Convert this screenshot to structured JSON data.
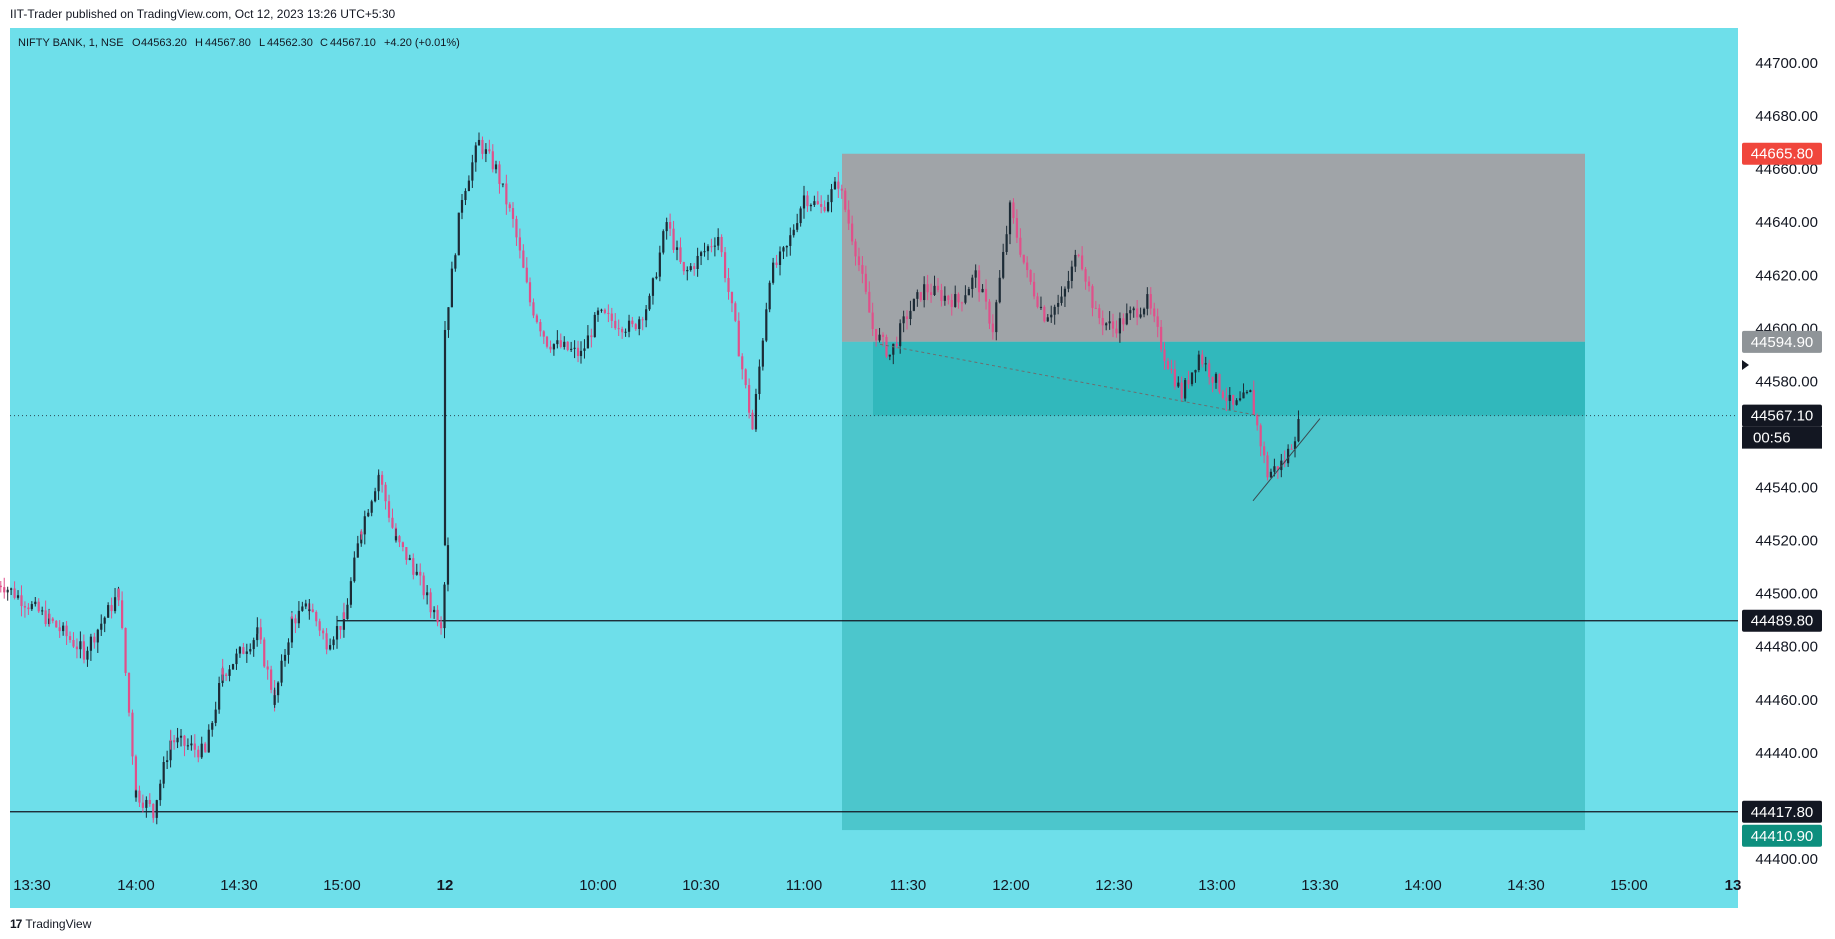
{
  "header": {
    "published": "IIT-Trader published on TradingView.com, Oct 12, 2023 13:26 UTC+5:30"
  },
  "footer": {
    "brand_mark": "17",
    "brand": "TradingView"
  },
  "colors": {
    "background": "#6edfea",
    "profit_zone": "#4cc6cc",
    "stop_zone": "#a0a4a8",
    "up_candle": "#1c2b36",
    "down_candle": "#e0508a",
    "level_line": "#131722",
    "badge_red": "#f0463c",
    "badge_gray": "#8f9498",
    "badge_dark": "#131722",
    "badge_green": "#0d8f7e"
  },
  "chart_data": {
    "type": "candlestick",
    "legend": {
      "symbol": "NIFTY BANK, 1, NSE",
      "open_label": "O",
      "open": "44563.20",
      "high_label": "H",
      "high": "44567.80",
      "low_label": "L",
      "low": "44562.30",
      "close_label": "C",
      "close": "44567.10",
      "change": "+4.20 (+0.01%)"
    },
    "y_axis": {
      "ticks": [
        "44700.00",
        "44680.00",
        "44660.00",
        "44640.00",
        "44620.00",
        "44600.00",
        "44580.00",
        "44560.00",
        "44540.00",
        "44520.00",
        "44500.00",
        "44480.00",
        "44460.00",
        "44440.00",
        "44400.00"
      ],
      "ylim": [
        44400,
        44710
      ]
    },
    "x_axis": {
      "ticks": [
        {
          "label": "13:30",
          "bold": false
        },
        {
          "label": "14:00",
          "bold": false
        },
        {
          "label": "14:30",
          "bold": false
        },
        {
          "label": "15:00",
          "bold": false
        },
        {
          "label": "12",
          "bold": true
        },
        {
          "label": "10:00",
          "bold": false
        },
        {
          "label": "10:30",
          "bold": false
        },
        {
          "label": "11:00",
          "bold": false
        },
        {
          "label": "11:30",
          "bold": false
        },
        {
          "label": "12:00",
          "bold": false
        },
        {
          "label": "12:30",
          "bold": false
        },
        {
          "label": "13:00",
          "bold": false
        },
        {
          "label": "13:30",
          "bold": false
        },
        {
          "label": "14:00",
          "bold": false
        },
        {
          "label": "14:30",
          "bold": false
        },
        {
          "label": "15:00",
          "bold": false
        },
        {
          "label": "13",
          "bold": true
        }
      ]
    },
    "price_badges": [
      {
        "value": "44665.80",
        "color": "badge_red"
      },
      {
        "value": "44594.90",
        "color": "badge_gray"
      },
      {
        "value": "44567.10",
        "color": "badge_dark",
        "countdown": "00:56"
      },
      {
        "value": "44489.80",
        "color": "badge_dark"
      },
      {
        "value": "44417.80",
        "color": "badge_dark"
      },
      {
        "value": "44410.90",
        "color": "badge_green"
      }
    ],
    "position_tool": {
      "type": "short",
      "stop": 44665.8,
      "entry": 44594.9,
      "target": 44410.9
    },
    "horizontal_levels": [
      44489.8,
      44417.8
    ],
    "last_price": 44567.1,
    "series": [
      {
        "name": "",
        "path": [
          [
            "13:20",
            44505
          ],
          [
            "13:35",
            44490
          ],
          [
            "13:45",
            44478
          ],
          [
            "13:55",
            44500
          ],
          [
            "14:00",
            44425
          ],
          [
            "14:05",
            44418
          ],
          [
            "14:10",
            44445
          ],
          [
            "14:20",
            44440
          ],
          [
            "14:25",
            44470
          ],
          [
            "14:35",
            44485
          ],
          [
            "14:40",
            44460
          ],
          [
            "14:45",
            44490
          ],
          [
            "14:50",
            44495
          ],
          [
            "14:55",
            44482
          ],
          [
            "15:00",
            44490
          ],
          [
            "15:05",
            44525
          ],
          [
            "15:10",
            44545
          ],
          [
            "15:15",
            44520
          ],
          [
            "15:20",
            44510
          ],
          [
            "15:25",
            44495
          ],
          [
            "15:28",
            44490
          ],
          [
            "15:30",
            44520
          ],
          [
            "09:15",
            44600
          ],
          [
            "09:20",
            44650
          ],
          [
            "09:25",
            44670
          ],
          [
            "09:30",
            44660
          ],
          [
            "09:35",
            44640
          ],
          [
            "09:40",
            44610
          ],
          [
            "09:45",
            44595
          ],
          [
            "09:55",
            44590
          ],
          [
            "10:00",
            44605
          ],
          [
            "10:10",
            44600
          ],
          [
            "10:15",
            44610
          ],
          [
            "10:20",
            44640
          ],
          [
            "10:25",
            44620
          ],
          [
            "10:35",
            44635
          ],
          [
            "10:40",
            44600
          ],
          [
            "10:45",
            44562
          ],
          [
            "10:50",
            44620
          ],
          [
            "10:55",
            44630
          ],
          [
            "11:00",
            44650
          ],
          [
            "11:05",
            44645
          ],
          [
            "11:10",
            44655
          ],
          [
            "11:15",
            44630
          ],
          [
            "11:20",
            44600
          ],
          [
            "11:25",
            44590
          ],
          [
            "11:30",
            44605
          ],
          [
            "11:35",
            44615
          ],
          [
            "11:45",
            44610
          ],
          [
            "11:50",
            44620
          ],
          [
            "11:55",
            44600
          ],
          [
            "12:00",
            44645
          ],
          [
            "12:05",
            44620
          ],
          [
            "12:10",
            44605
          ],
          [
            "12:15",
            44610
          ],
          [
            "12:20",
            44630
          ],
          [
            "12:25",
            44605
          ],
          [
            "12:30",
            44600
          ],
          [
            "12:40",
            44610
          ],
          [
            "12:45",
            44590
          ],
          [
            "12:50",
            44575
          ],
          [
            "12:55",
            44590
          ],
          [
            "13:00",
            44580
          ],
          [
            "13:05",
            44570
          ],
          [
            "13:10",
            44575
          ],
          [
            "13:15",
            44545
          ],
          [
            "13:20",
            44550
          ],
          [
            "13:25",
            44567
          ]
        ]
      }
    ]
  }
}
